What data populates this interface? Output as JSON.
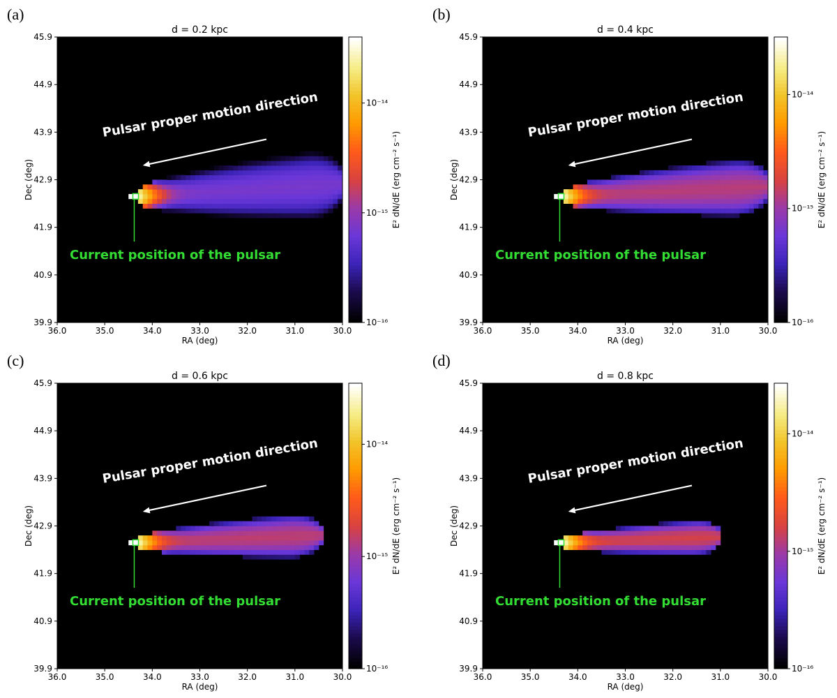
{
  "chart_data": [
    {
      "type": "heatmap",
      "panel_label": "(a)",
      "title": "d = 0.2 kpc",
      "xlabel": "RA (deg)",
      "ylabel": "Dec (deg)",
      "colorbar_label": "E² dN/dE (erg cm⁻² s⁻¹)",
      "xlim": [
        36.0,
        30.0
      ],
      "ylim": [
        39.9,
        45.9
      ],
      "xticks": [
        "36.0",
        "35.0",
        "34.0",
        "33.0",
        "32.0",
        "31.0",
        "30.0"
      ],
      "yticks": [
        "39.9",
        "40.9",
        "41.9",
        "42.9",
        "43.9",
        "44.9",
        "45.9"
      ],
      "colorbar_range": [
        1e-16,
        4e-14
      ],
      "colorbar_ticks": [
        {
          "label": "10⁻¹⁶",
          "value": 1e-16
        },
        {
          "label": "10⁻¹⁵",
          "value": 1e-15
        },
        {
          "label": "10⁻¹⁴",
          "value": 1e-14
        }
      ],
      "pulsar_position": {
        "ra": 34.35,
        "dec": 42.55
      },
      "nebula_tail_ra": 30.0,
      "nebula_half_width_deg": 0.75,
      "peak_flux": 4e-14,
      "tail_flux": 6e-16,
      "arrow_start": {
        "ra": 31.6,
        "dec": 43.75
      },
      "arrow_end": {
        "ra": 34.2,
        "dec": 43.2
      },
      "annotation_motion": "Pulsar proper motion direction",
      "annotation_position": "Current position of the pulsar"
    },
    {
      "type": "heatmap",
      "panel_label": "(b)",
      "title": "d = 0.4 kpc",
      "xlabel": "RA (deg)",
      "ylabel": "Dec (deg)",
      "colorbar_label": "E² dN/dE (erg cm⁻² s⁻¹)",
      "xlim": [
        36.0,
        30.0
      ],
      "ylim": [
        39.9,
        45.9
      ],
      "xticks": [
        "36.0",
        "35.0",
        "34.0",
        "33.0",
        "32.0",
        "31.0",
        "30.0"
      ],
      "yticks": [
        "39.9",
        "40.9",
        "41.9",
        "42.9",
        "43.9",
        "44.9",
        "45.9"
      ],
      "colorbar_range": [
        1e-16,
        3.2e-14
      ],
      "colorbar_ticks": [
        {
          "label": "10⁻¹⁶",
          "value": 1e-16
        },
        {
          "label": "10⁻¹⁵",
          "value": 1e-15
        },
        {
          "label": "10⁻¹⁴",
          "value": 1e-14
        }
      ],
      "pulsar_position": {
        "ra": 34.35,
        "dec": 42.55
      },
      "nebula_tail_ra": 30.0,
      "nebula_half_width_deg": 0.6,
      "peak_flux": 3.2e-14,
      "tail_flux": 1.1e-15,
      "arrow_start": {
        "ra": 31.6,
        "dec": 43.75
      },
      "arrow_end": {
        "ra": 34.2,
        "dec": 43.2
      },
      "annotation_motion": "Pulsar proper motion direction",
      "annotation_position": "Current position of the pulsar"
    },
    {
      "type": "heatmap",
      "panel_label": "(c)",
      "title": "d = 0.6 kpc",
      "xlabel": "RA (deg)",
      "ylabel": "Dec (deg)",
      "colorbar_label": "E² dN/dE (erg cm⁻² s⁻¹)",
      "xlim": [
        36.0,
        30.0
      ],
      "ylim": [
        39.9,
        45.9
      ],
      "xticks": [
        "36.0",
        "35.0",
        "34.0",
        "33.0",
        "32.0",
        "31.0",
        "30.0"
      ],
      "yticks": [
        "39.9",
        "40.9",
        "41.9",
        "42.9",
        "43.9",
        "44.9",
        "45.9"
      ],
      "colorbar_range": [
        1e-16,
        3.5e-14
      ],
      "colorbar_ticks": [
        {
          "label": "10⁻¹⁶",
          "value": 1e-16
        },
        {
          "label": "10⁻¹⁵",
          "value": 1e-15
        },
        {
          "label": "10⁻¹⁴",
          "value": 1e-14
        }
      ],
      "pulsar_position": {
        "ra": 34.35,
        "dec": 42.55
      },
      "nebula_tail_ra": 30.45,
      "nebula_half_width_deg": 0.45,
      "peak_flux": 3.5e-14,
      "tail_flux": 1.2e-15,
      "arrow_start": {
        "ra": 31.6,
        "dec": 43.75
      },
      "arrow_end": {
        "ra": 34.2,
        "dec": 43.2
      },
      "annotation_motion": "Pulsar proper motion direction",
      "annotation_position": "Current position of the pulsar"
    },
    {
      "type": "heatmap",
      "panel_label": "(d)",
      "title": "d = 0.8 kpc",
      "xlabel": "RA (deg)",
      "ylabel": "Dec (deg)",
      "colorbar_label": "E² dN/dE (erg cm⁻² s⁻¹)",
      "xlim": [
        36.0,
        30.0
      ],
      "ylim": [
        39.9,
        45.9
      ],
      "xticks": [
        "36.0",
        "35.0",
        "34.0",
        "33.0",
        "32.0",
        "31.0",
        "30.0"
      ],
      "yticks": [
        "39.9",
        "40.9",
        "41.9",
        "42.9",
        "43.9",
        "44.9",
        "45.9"
      ],
      "colorbar_range": [
        1e-16,
        2.7e-14
      ],
      "colorbar_ticks": [
        {
          "label": "10⁻¹⁶",
          "value": 1e-16
        },
        {
          "label": "10⁻¹⁵",
          "value": 1e-15
        },
        {
          "label": "10⁻¹⁴",
          "value": 1e-14
        }
      ],
      "pulsar_position": {
        "ra": 34.35,
        "dec": 42.55
      },
      "nebula_tail_ra": 31.0,
      "nebula_half_width_deg": 0.35,
      "peak_flux": 2.7e-14,
      "tail_flux": 1.3e-15,
      "arrow_start": {
        "ra": 31.6,
        "dec": 43.75
      },
      "arrow_end": {
        "ra": 34.2,
        "dec": 43.2
      },
      "annotation_motion": "Pulsar proper motion direction",
      "annotation_position": "Current position of the pulsar"
    }
  ],
  "colors": {
    "background": "#000000",
    "arrow": "#ffffff",
    "pulsar_marker": "#33dd33",
    "colormap": [
      "#000000",
      "#1a0a4a",
      "#3b23b8",
      "#6a37d8",
      "#9b3aa8",
      "#d9423f",
      "#ff5a1a",
      "#ff9a00",
      "#f2c42a",
      "#f6ee8a",
      "#ffffff"
    ]
  }
}
